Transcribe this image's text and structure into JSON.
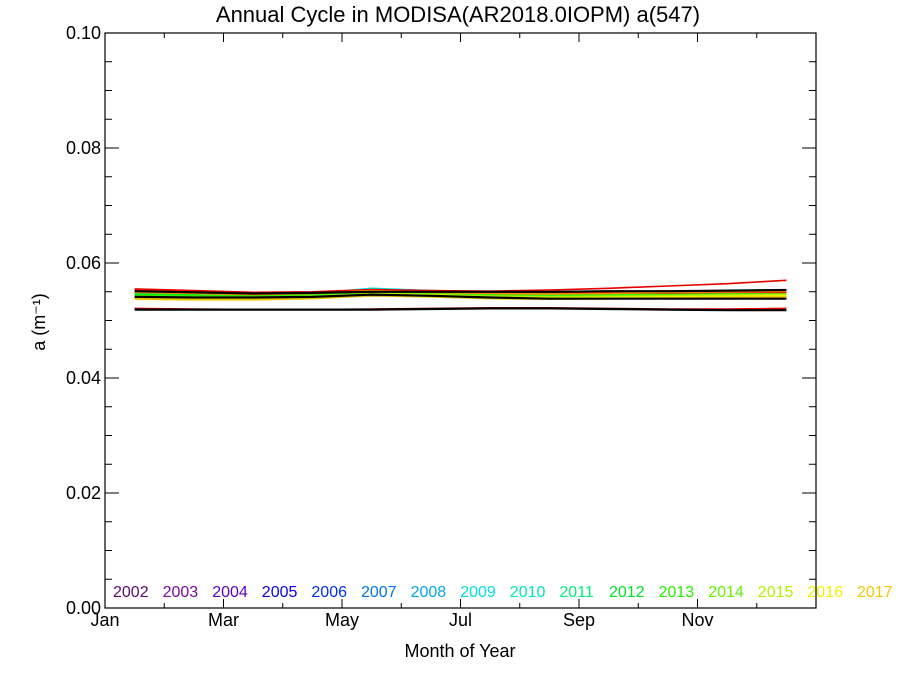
{
  "chart_data": {
    "type": "line",
    "title": "Annual Cycle in MODISA(AR2018.0IOPM) a(547)",
    "xlabel": "Month of Year",
    "ylabel": "a (m⁻¹)",
    "xlim": [
      0,
      12
    ],
    "ylim": [
      0.0,
      0.1
    ],
    "x_ticks": [
      {
        "value": 0,
        "label": "Jan"
      },
      {
        "value": 2,
        "label": "Mar"
      },
      {
        "value": 4,
        "label": "May"
      },
      {
        "value": 6,
        "label": "Jul"
      },
      {
        "value": 8,
        "label": "Sep"
      },
      {
        "value": 10,
        "label": "Nov"
      }
    ],
    "y_ticks": [
      {
        "value": 0.0,
        "label": "0.00"
      },
      {
        "value": 0.02,
        "label": "0.02"
      },
      {
        "value": 0.04,
        "label": "0.04"
      },
      {
        "value": 0.06,
        "label": "0.06"
      },
      {
        "value": 0.08,
        "label": "0.08"
      },
      {
        "value": 0.1,
        "label": "0.10"
      }
    ],
    "x": [
      0.5,
      1.5,
      2.5,
      3.5,
      4.5,
      5.5,
      6.5,
      7.5,
      8.5,
      9.5,
      10.5,
      11.5
    ],
    "series": [
      {
        "name": "2002",
        "color": "#5a0a6e",
        "values": [
          null,
          null,
          null,
          null,
          null,
          null,
          0.0543,
          0.0547,
          0.0549,
          0.055,
          0.0552,
          0.0553
        ]
      },
      {
        "name": "2003",
        "color": "#7a0aa0",
        "values": [
          0.0548,
          0.0546,
          0.0544,
          0.0546,
          0.055,
          0.0548,
          0.0546,
          0.0545,
          0.0546,
          0.0548,
          0.0549,
          0.055
        ]
      },
      {
        "name": "2004",
        "color": "#5a00c8",
        "values": [
          0.0545,
          0.0543,
          0.0542,
          0.0544,
          0.0548,
          0.0546,
          0.0544,
          0.0543,
          0.0544,
          0.0546,
          0.0547,
          0.0548
        ]
      },
      {
        "name": "2005",
        "color": "#1000e6",
        "values": [
          0.0543,
          0.0542,
          0.0541,
          0.0543,
          0.0546,
          0.0545,
          0.0543,
          0.0542,
          0.0543,
          0.0544,
          0.0545,
          0.0546
        ]
      },
      {
        "name": "2006",
        "color": "#0030f0",
        "values": [
          0.054,
          0.0539,
          0.0538,
          0.054,
          0.0543,
          0.0542,
          0.054,
          0.0539,
          0.054,
          0.0541,
          0.0542,
          0.0543
        ]
      },
      {
        "name": "2007",
        "color": "#0078f0",
        "values": [
          0.0547,
          0.0545,
          0.0544,
          0.0546,
          0.0553,
          0.055,
          0.0548,
          0.0546,
          0.0547,
          0.0548,
          0.0549,
          0.055
        ]
      },
      {
        "name": "2008",
        "color": "#00a8e6",
        "values": [
          0.0544,
          0.0543,
          0.0543,
          0.0545,
          0.0551,
          0.0548,
          0.0546,
          0.0545,
          0.0546,
          0.0547,
          0.0548,
          0.0549
        ]
      },
      {
        "name": "2009",
        "color": "#00e0e0",
        "values": [
          0.0546,
          0.0545,
          0.0544,
          0.0547,
          0.0556,
          0.0552,
          0.0548,
          0.0547,
          0.0547,
          0.0548,
          0.0549,
          0.055
        ]
      },
      {
        "name": "2010",
        "color": "#00e6b4",
        "values": [
          0.0545,
          0.0544,
          0.0544,
          0.0546,
          0.0554,
          0.055,
          0.0547,
          0.0546,
          0.0546,
          0.0547,
          0.0548,
          0.0549
        ]
      },
      {
        "name": "2011",
        "color": "#00f078",
        "values": [
          0.0543,
          0.0542,
          0.0542,
          0.0544,
          0.0551,
          0.0548,
          0.0545,
          0.0544,
          0.0544,
          0.0545,
          0.0546,
          0.0547
        ]
      },
      {
        "name": "2012",
        "color": "#00e628",
        "values": [
          0.0546,
          0.0545,
          0.0545,
          0.0547,
          0.0553,
          0.055,
          0.0547,
          0.0546,
          0.0547,
          0.0548,
          0.0549,
          0.055
        ]
      },
      {
        "name": "2013",
        "color": "#28f000",
        "values": [
          0.0544,
          0.0543,
          0.0543,
          0.0545,
          0.055,
          0.0547,
          0.0545,
          0.0544,
          0.0545,
          0.0546,
          0.0547,
          0.0548
        ]
      },
      {
        "name": "2014",
        "color": "#64f000",
        "values": [
          0.0542,
          0.0541,
          0.0541,
          0.0543,
          0.0548,
          0.0546,
          0.0543,
          0.0542,
          0.0543,
          0.0544,
          0.0545,
          0.0546
        ]
      },
      {
        "name": "2015",
        "color": "#b4f000",
        "values": [
          0.0541,
          0.054,
          0.054,
          0.0542,
          0.0547,
          0.0545,
          0.0542,
          0.0541,
          0.0542,
          0.0543,
          0.0544,
          0.0545
        ]
      },
      {
        "name": "2016",
        "color": "#f0f000",
        "values": [
          0.0539,
          0.0538,
          0.0538,
          0.054,
          0.0545,
          0.0543,
          0.054,
          0.0539,
          0.054,
          0.0541,
          0.0542,
          0.0543
        ]
      },
      {
        "name": "2017",
        "color": "#f0c800",
        "values": [
          0.0537,
          0.0536,
          0.0536,
          0.0538,
          0.0543,
          0.0541,
          0.0538,
          0.0537,
          0.0538,
          0.0539,
          0.054,
          0.0541
        ]
      },
      {
        "name": "",
        "color": "#e60000",
        "values": [
          0.0555,
          0.0552,
          0.0549,
          0.055,
          0.0554,
          0.0552,
          0.0551,
          0.0553,
          0.0556,
          0.056,
          0.0564,
          0.057
        ]
      },
      {
        "name": "",
        "color": "#f01400",
        "values": [
          0.0553,
          0.055,
          0.0547,
          0.0548,
          0.0552,
          0.0551,
          0.055,
          0.0549,
          0.0548,
          0.0548,
          0.0549,
          0.0549
        ]
      },
      {
        "name": "",
        "color": "#ff8c00",
        "values": [
          0.0549,
          0.0547,
          0.0545,
          0.0547,
          0.0552,
          0.0549,
          0.0547,
          0.0546,
          0.0547,
          0.0549,
          0.055,
          0.0551
        ]
      },
      {
        "name": "",
        "color": "#e60000",
        "values": [
          0.0521,
          0.052,
          0.0519,
          0.0519,
          0.052,
          0.0521,
          0.0522,
          0.0522,
          0.0521,
          0.052,
          0.052,
          0.0521
        ]
      },
      {
        "name": "",
        "color": "#000000",
        "values": [
          0.0551,
          0.0549,
          0.0547,
          0.0548,
          0.055,
          0.055,
          0.055,
          0.055,
          0.0551,
          0.0551,
          0.0552,
          0.0553
        ]
      },
      {
        "name": "",
        "color": "#000000",
        "values": [
          0.0541,
          0.054,
          0.054,
          0.0541,
          0.0545,
          0.0543,
          0.054,
          0.0538,
          0.0538,
          0.0538,
          0.0538,
          0.0538
        ]
      },
      {
        "name": "",
        "color": "#000000",
        "values": [
          0.0519,
          0.0519,
          0.0519,
          0.0519,
          0.0519,
          0.052,
          0.0521,
          0.0521,
          0.052,
          0.0519,
          0.0518,
          0.0518
        ]
      }
    ]
  }
}
